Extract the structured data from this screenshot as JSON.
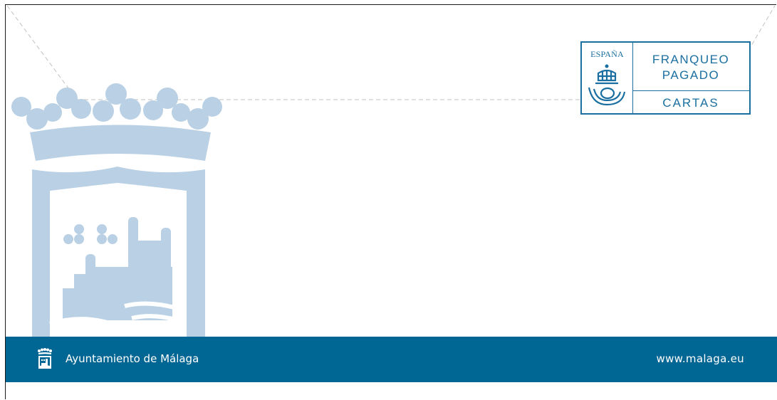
{
  "stamp": {
    "country": "ESPAÑA",
    "line1": "FRANQUEO",
    "line2": "PAGADO",
    "line3": "CARTAS"
  },
  "footer": {
    "organization": "Ayuntamiento de Málaga",
    "url": "www.malaga.eu"
  },
  "colors": {
    "brand_blue": "#006693",
    "stamp_blue": "#1b6fa0",
    "crest_tint": "#b9d0e5",
    "guide_line": "#bfbfbf"
  },
  "icons": {
    "crest_watermark": "city-crest-icon",
    "stamp_emblem": "post-horn-crown-icon",
    "footer_logo": "city-crest-small-icon"
  }
}
